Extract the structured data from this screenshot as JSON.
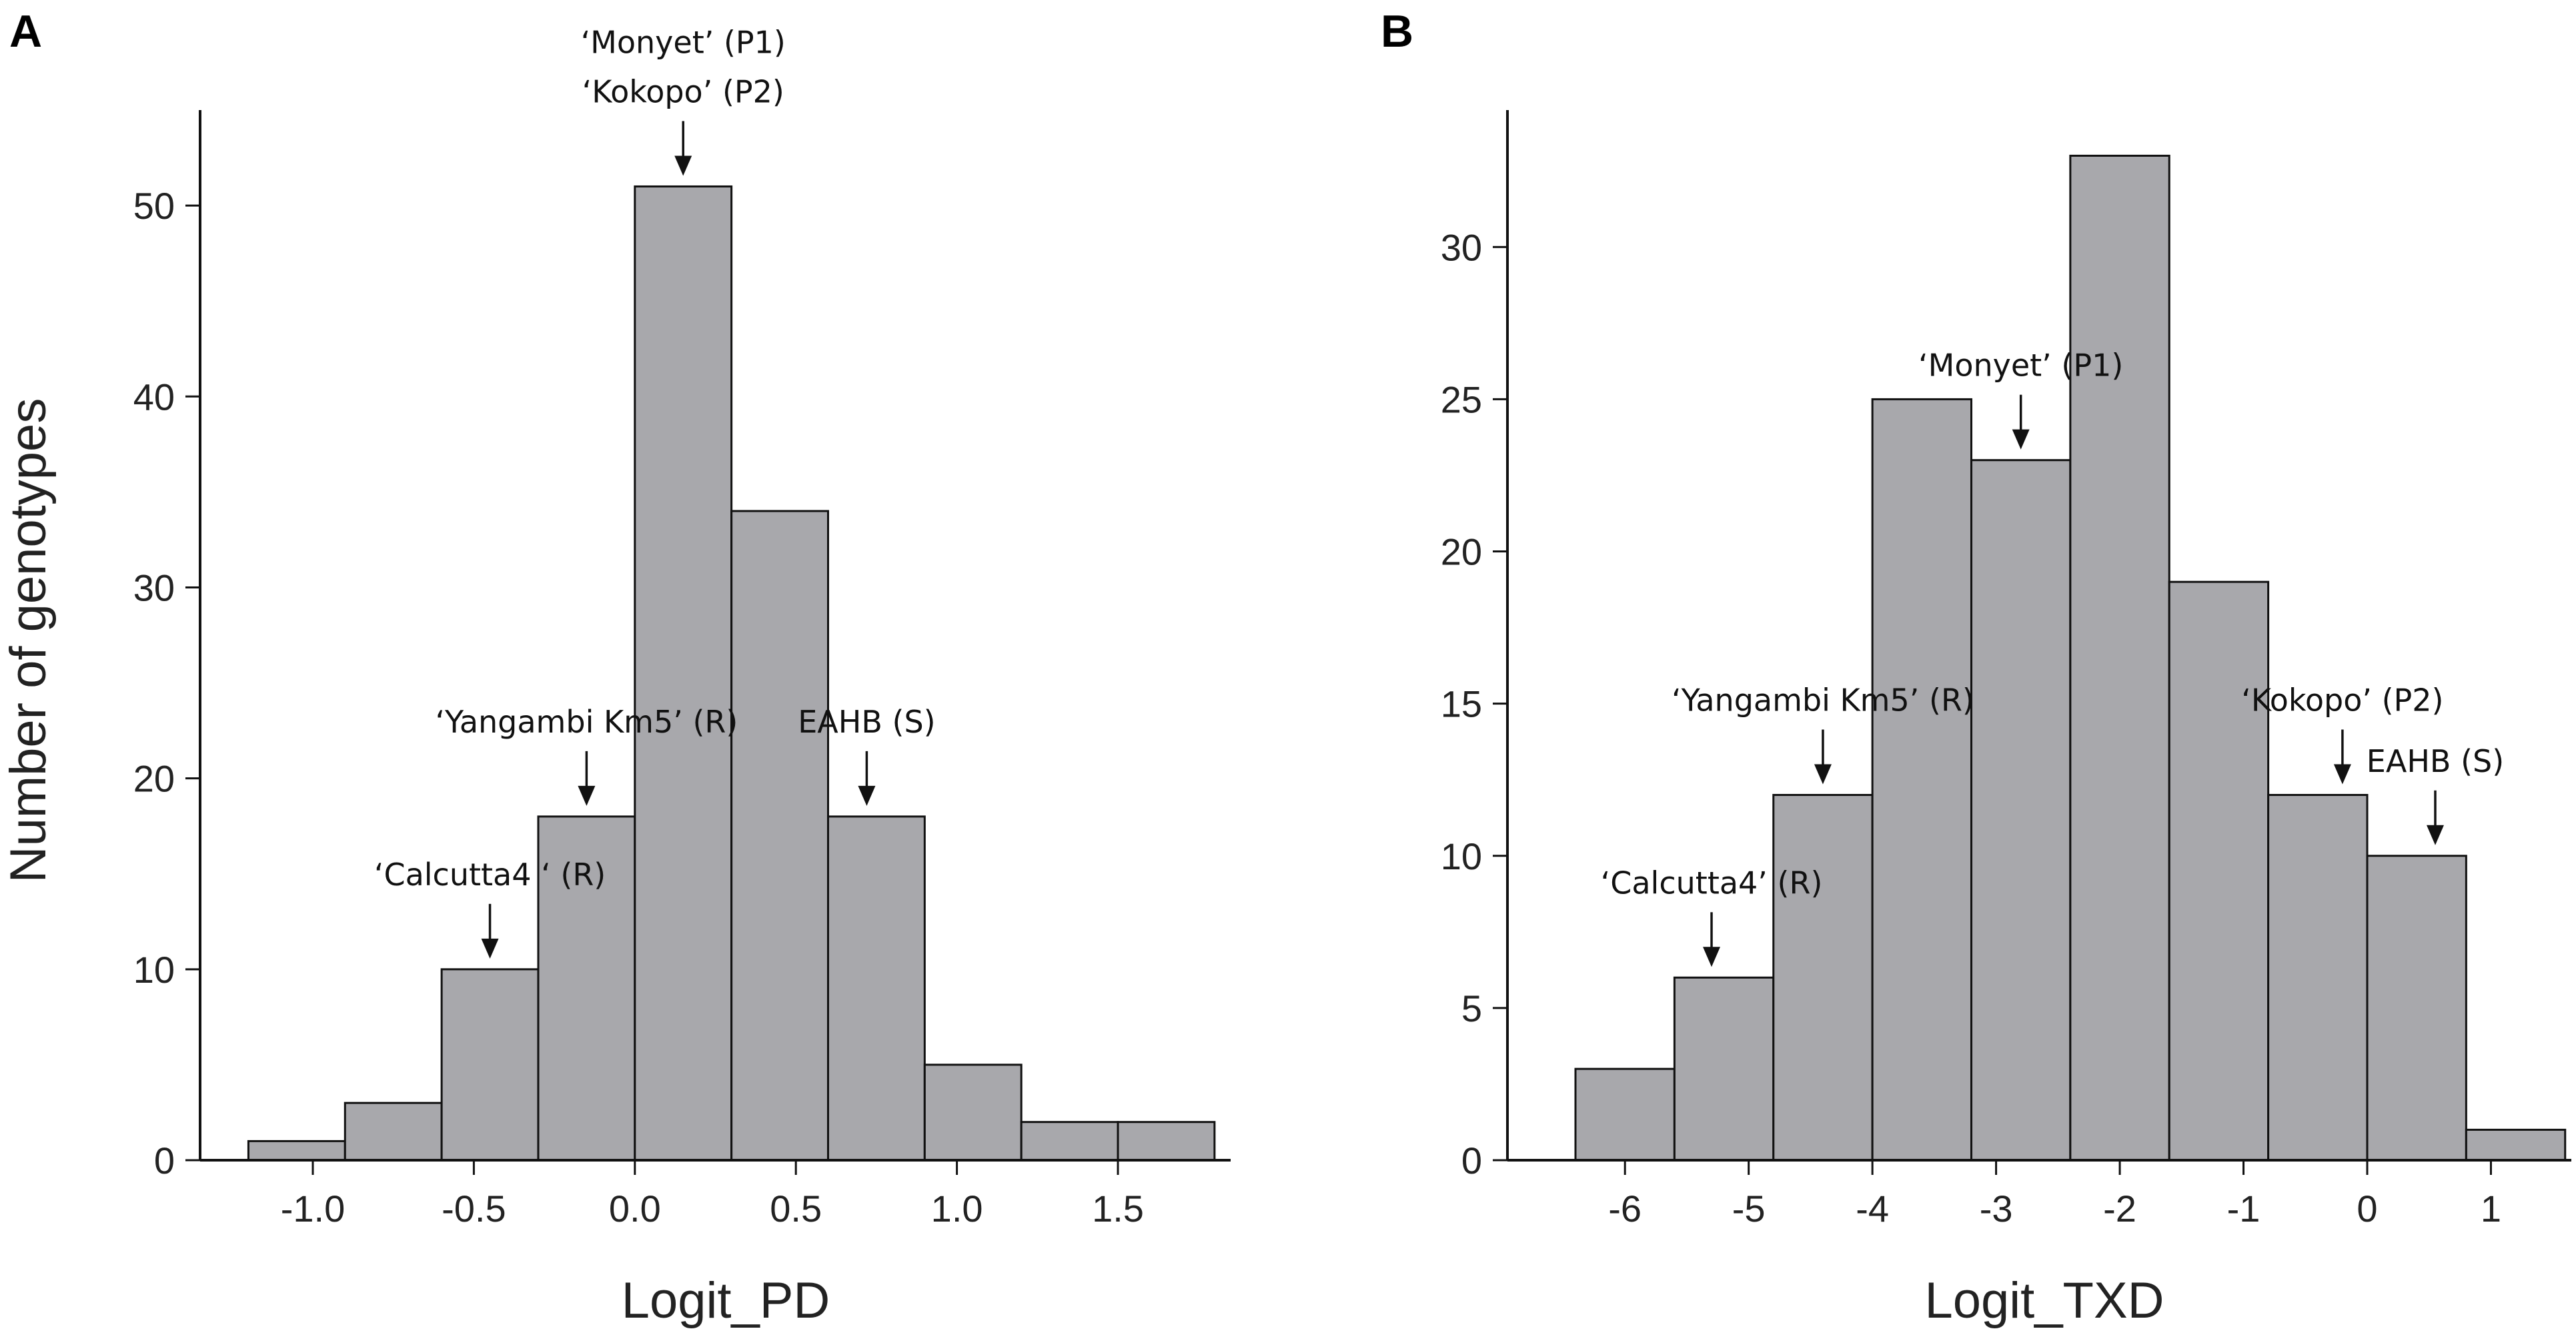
{
  "chart_data": [
    {
      "type": "bar",
      "panel": "A",
      "xlabel": "Logit_PD",
      "ylabel": "Number of genotypes",
      "bins": [
        [
          -1.2,
          -0.9
        ],
        [
          -0.9,
          -0.6
        ],
        [
          -0.6,
          -0.3
        ],
        [
          -0.3,
          0.0
        ],
        [
          0.0,
          0.3
        ],
        [
          0.3,
          0.6
        ],
        [
          0.6,
          0.9
        ],
        [
          0.9,
          1.2
        ],
        [
          1.2,
          1.5
        ],
        [
          1.5,
          1.8
        ]
      ],
      "values": [
        1,
        3,
        10,
        18,
        51,
        34,
        18,
        5,
        2,
        2
      ],
      "xlim": [
        -1.35,
        1.85
      ],
      "ylim": [
        0,
        55
      ],
      "xticks": [
        -1.0,
        -0.5,
        0.0,
        0.5,
        1.0,
        1.5
      ],
      "xtick_labels": [
        "-1.0",
        "-0.5",
        "0.0",
        "0.5",
        "1.0",
        "1.5"
      ],
      "yticks": [
        0,
        10,
        20,
        30,
        40,
        50
      ],
      "ytick_labels": [
        "0",
        "10",
        "20",
        "30",
        "40",
        "50"
      ],
      "annotations": [
        {
          "lines": [
            "‘Monyet’ (P1)",
            "‘Kokopo’ (P2)"
          ],
          "x": 0.15,
          "y": 51
        },
        {
          "lines": [
            "‘Yangambi Km5’ (R)"
          ],
          "x": -0.15,
          "y": 18
        },
        {
          "lines": [
            "EAHB (S)"
          ],
          "x": 0.72,
          "y": 18
        },
        {
          "lines": [
            "‘Calcutta4 ‘ (R)"
          ],
          "x": -0.45,
          "y": 10
        }
      ]
    },
    {
      "type": "bar",
      "panel": "B",
      "xlabel": "Logit_TXD",
      "ylabel": "",
      "bins": [
        [
          -6.4,
          -5.6
        ],
        [
          -5.6,
          -4.8
        ],
        [
          -4.8,
          -4.0
        ],
        [
          -4.0,
          -3.2
        ],
        [
          -3.2,
          -2.4
        ],
        [
          -2.4,
          -1.6
        ],
        [
          -1.6,
          -0.8
        ],
        [
          -0.8,
          0.0
        ],
        [
          0.0,
          0.8
        ],
        [
          0.8,
          1.6
        ]
      ],
      "values": [
        3,
        6,
        12,
        25,
        23,
        33,
        19,
        12,
        10,
        1
      ],
      "xlim": [
        -6.95,
        1.65
      ],
      "ylim": [
        0,
        34.5
      ],
      "xticks": [
        -6,
        -5,
        -4,
        -3,
        -2,
        -1,
        0,
        1
      ],
      "xtick_labels": [
        "-6",
        "-5",
        "-4",
        "-3",
        "-2",
        "-1",
        "0",
        "1"
      ],
      "yticks": [
        0,
        5,
        10,
        15,
        20,
        25,
        30
      ],
      "ytick_labels": [
        "0",
        "5",
        "10",
        "15",
        "20",
        "25",
        "30"
      ],
      "annotations": [
        {
          "lines": [
            "‘Monyet’ (P1)"
          ],
          "x": -2.8,
          "y": 23
        },
        {
          "lines": [
            "‘Yangambi Km5’ (R)"
          ],
          "x": -4.4,
          "y": 12
        },
        {
          "lines": [
            "‘Kokopo’ (P2)"
          ],
          "x": -0.2,
          "y": 12
        },
        {
          "lines": [
            "EAHB (S)"
          ],
          "x": 0.55,
          "y": 10
        },
        {
          "lines": [
            "‘Calcutta4’ (R)"
          ],
          "x": -5.3,
          "y": 6
        }
      ]
    }
  ]
}
